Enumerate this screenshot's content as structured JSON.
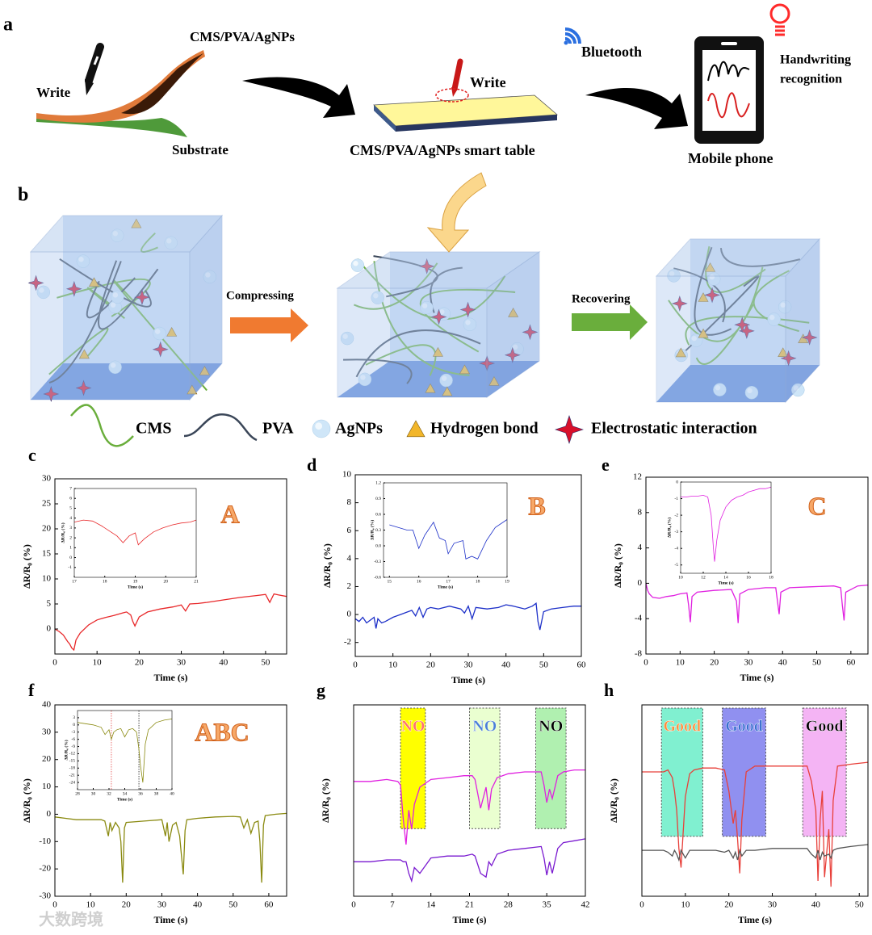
{
  "panel_labels": [
    "a",
    "b"
  ],
  "panel_a": {
    "film_label": "CMS/PVA/AgNPs",
    "write_left": "Write",
    "substrate": "Substrate",
    "write_table": "Write",
    "table_label": "CMS/PVA/AgNPs smart table",
    "bluetooth": "Bluetooth",
    "handwriting": [
      "Handwriting",
      "recognition"
    ],
    "phone": "Mobile phone"
  },
  "panel_b": {
    "compressing": "Compressing",
    "recovering": "Recovering",
    "legend": [
      "CMS",
      "PVA",
      "AgNPs",
      "Hydrogen bond",
      "Electrostatic interaction"
    ]
  },
  "watermark": "大数跨境",
  "chart_data": [
    {
      "panel": "c",
      "type": "line",
      "xlabel": "Time (s)",
      "ylabel": "ΔR/R₀ (%)",
      "annotation": "A",
      "xlim": [
        0,
        55
      ],
      "xticks": [
        0,
        10,
        20,
        30,
        40,
        50
      ],
      "ylim": [
        -5,
        30
      ],
      "yticks": [
        0,
        5,
        10,
        15,
        20,
        25,
        30
      ],
      "x": [
        0,
        1,
        2,
        3,
        3.5,
        4,
        4.5,
        5,
        6,
        8,
        10,
        12,
        14,
        16,
        17,
        18,
        18.5,
        19,
        20,
        22,
        25,
        28,
        30,
        31,
        32,
        34,
        36,
        40,
        44,
        48,
        50,
        51,
        52,
        53,
        55
      ],
      "series": [
        {
          "color": "#e8282a",
          "values": [
            0,
            -0.5,
            -1.2,
            -2.5,
            -3,
            -3.8,
            -4.2,
            -2.2,
            -0.8,
            0.8,
            1.8,
            2.3,
            2.7,
            3.2,
            3.4,
            2.8,
            1.5,
            0.6,
            2.4,
            3.4,
            4,
            4.4,
            4.8,
            3.6,
            5,
            5.1,
            5.3,
            5.8,
            6.3,
            6.7,
            6.9,
            5.3,
            7,
            6.8,
            6.5
          ]
        }
      ],
      "inset": {
        "type": "line",
        "xlabel": "Time (s)",
        "ylabel": "ΔR/R₀ (%)",
        "xlim": [
          17,
          21
        ],
        "xticks": [
          17,
          18,
          19,
          20,
          21
        ],
        "ylim": [
          -2,
          7
        ],
        "yticks": [
          -1,
          0,
          1,
          2,
          3,
          4,
          5,
          6,
          7
        ],
        "x": [
          17,
          17.3,
          17.6,
          17.9,
          18.2,
          18.4,
          18.6,
          18.8,
          19,
          19.1,
          19.3,
          19.6,
          19.9,
          20.2,
          20.5,
          20.8,
          21
        ],
        "series": [
          {
            "color": "#e8282a",
            "values": [
              3.6,
              3.8,
              3.7,
              3.2,
              2.6,
              2.2,
              1.5,
              2.2,
              2.5,
              1.3,
              1.9,
              2.6,
              3,
              3.3,
              3.5,
              3.6,
              3.8
            ]
          }
        ]
      }
    },
    {
      "panel": "d",
      "type": "line",
      "xlabel": "Time (s)",
      "ylabel": "ΔR/R₀ (%)",
      "annotation": "B",
      "xlim": [
        0,
        60
      ],
      "xticks": [
        0,
        10,
        20,
        30,
        40,
        50,
        60
      ],
      "ylim": [
        -3,
        10
      ],
      "yticks": [
        -2,
        0,
        2,
        4,
        6,
        8,
        10
      ],
      "x": [
        0,
        1,
        2,
        3,
        4,
        5,
        5.5,
        6,
        7,
        8,
        10,
        12,
        14,
        15,
        16,
        17,
        18,
        19,
        20,
        22,
        25,
        28,
        29,
        30,
        31,
        32,
        35,
        38,
        40,
        42,
        45,
        47,
        48,
        48.5,
        49,
        50,
        52,
        55,
        58,
        60
      ],
      "series": [
        {
          "color": "#1c2fc8",
          "values": [
            -0.3,
            -0.5,
            -0.2,
            -0.6,
            -0.4,
            -0.2,
            -1,
            -0.3,
            -0.6,
            -0.5,
            -0.2,
            0,
            0.2,
            0.3,
            -0.1,
            0.5,
            -0.2,
            0.4,
            0.5,
            0.4,
            0.6,
            0.4,
            0.1,
            0.6,
            -0.3,
            0.5,
            0.4,
            0.5,
            0.7,
            0.6,
            0.4,
            0.6,
            0.8,
            -0.5,
            -1.1,
            0.2,
            0.4,
            0.5,
            0.6,
            0.6
          ]
        }
      ],
      "inset": {
        "type": "line",
        "xlabel": "Time (s)",
        "ylabel": "ΔR/R₀ (%)",
        "xlim": [
          14.8,
          19
        ],
        "xticks": [
          15,
          16,
          17,
          18,
          19
        ],
        "ylim": [
          -0.6,
          1.2
        ],
        "yticks": [
          -0.6,
          -0.3,
          {
            "value": 0,
            "label": "0.0"
          },
          0.3,
          0.6,
          0.9,
          1.2
        ],
        "x": [
          15,
          15.3,
          15.6,
          15.8,
          16,
          16.2,
          16.5,
          16.7,
          16.9,
          17,
          17.2,
          17.5,
          17.6,
          17.8,
          18,
          18.3,
          18.6,
          19
        ],
        "series": [
          {
            "color": "#1c2fc8",
            "values": [
              0.4,
              0.35,
              0.3,
              0.3,
              -0.05,
              0.2,
              0.45,
              0.15,
              0.1,
              -0.15,
              0.05,
              0.1,
              -0.25,
              -0.2,
              -0.25,
              0.1,
              0.35,
              0.5
            ]
          }
        ]
      }
    },
    {
      "panel": "e",
      "type": "line",
      "xlabel": "Time (s)",
      "ylabel": "ΔR/R₀ (%)",
      "annotation": "C",
      "xlim": [
        0,
        65
      ],
      "xticks": [
        0,
        10,
        20,
        30,
        40,
        50,
        60
      ],
      "ylim": [
        -8,
        12
      ],
      "yticks": [
        -8,
        -4,
        0,
        4,
        8,
        12
      ],
      "x": [
        0,
        0.5,
        1,
        2,
        4,
        6,
        8,
        10,
        12,
        12.5,
        13,
        13.5,
        15,
        20,
        25,
        26.5,
        27,
        27.5,
        30,
        35,
        38,
        38.5,
        39,
        39.5,
        42,
        48,
        55,
        57,
        57.5,
        58,
        58.5,
        62,
        65
      ],
      "series": [
        {
          "color": "#e020e0",
          "values": [
            0,
            -0.8,
            -1.2,
            -1.6,
            -1.7,
            -1.5,
            -1.4,
            -1.2,
            -1.1,
            -2.5,
            -4.4,
            -1.5,
            -1,
            -0.8,
            -0.7,
            -2,
            -4.5,
            -1.2,
            -0.7,
            -0.5,
            -0.5,
            -2,
            -3.5,
            -1,
            -0.5,
            -0.4,
            -0.3,
            -0.5,
            -2.5,
            -4.2,
            -1,
            -0.3,
            -0.2
          ]
        }
      ],
      "inset": {
        "type": "line",
        "xlabel": "Time (s)",
        "ylabel": "ΔR/R₀ (%)",
        "xlim": [
          10,
          18
        ],
        "xticks": [
          10,
          12,
          14,
          16,
          18
        ],
        "ylim": [
          -5.5,
          0
        ],
        "yticks": [
          -5,
          -4,
          -3,
          -2,
          -1,
          0
        ],
        "x": [
          10,
          10.5,
          11,
          11.5,
          12,
          12.4,
          12.7,
          12.9,
          13,
          13.2,
          13.5,
          14,
          14.5,
          15,
          15.5,
          16,
          16.5,
          17,
          17.5,
          18
        ],
        "series": [
          {
            "color": "#e020e0",
            "values": [
              -0.9,
              -0.9,
              -0.85,
              -0.85,
              -0.8,
              -0.9,
              -2,
              -4,
              -4.8,
              -3.5,
              -2.3,
              -1.5,
              -1.1,
              -0.9,
              -0.8,
              -0.6,
              -0.5,
              -0.4,
              -0.4,
              -0.3
            ]
          }
        ]
      }
    },
    {
      "panel": "f",
      "type": "line",
      "xlabel": "Time (s)",
      "ylabel": "ΔR/R₀ (%)",
      "annotation": "ABC",
      "xlim": [
        0,
        65
      ],
      "xticks": [
        0,
        10,
        20,
        30,
        40,
        50,
        60
      ],
      "ylim": [
        -30,
        40
      ],
      "yticks": [
        -30,
        -20,
        -10,
        0,
        10,
        20,
        30,
        40
      ],
      "x": [
        0,
        3,
        6,
        10,
        13,
        14,
        15,
        15.5,
        16,
        17,
        18,
        18.5,
        19,
        19.5,
        20,
        25,
        30,
        31,
        31.5,
        32,
        33,
        34,
        35,
        35.5,
        36,
        36.5,
        37,
        40,
        45,
        50,
        52,
        53,
        54,
        55,
        56,
        57,
        57.5,
        58,
        58.5,
        59,
        62,
        65
      ],
      "series": [
        {
          "color": "#8a8a10",
          "values": [
            -1,
            -1.5,
            -2,
            -2,
            -2,
            -2.5,
            -8,
            -3,
            -6,
            -3,
            -5,
            -10,
            -25,
            -5,
            -3,
            -2.5,
            -2,
            -8,
            -3,
            -10,
            -4,
            -3,
            -8,
            -15,
            -22,
            -6,
            -2,
            -1.5,
            -1,
            -0.8,
            -1,
            -5,
            -2,
            -7,
            -3,
            -2.5,
            -10,
            -25,
            -4,
            -0.5,
            0,
            0.3
          ]
        }
      ],
      "inset": {
        "type": "line",
        "xlabel": "Time (s)",
        "ylabel": "ΔR/R₀ (%)",
        "xlim": [
          28,
          40
        ],
        "xticks": [
          28,
          30,
          32,
          34,
          36,
          38,
          40
        ],
        "ylim": [
          -27,
          6
        ],
        "yticks": [
          -24,
          -21,
          -18,
          -15,
          -12,
          -9,
          -6,
          -3,
          0,
          3
        ],
        "x": [
          28,
          29,
          30,
          31,
          31.5,
          32,
          32.3,
          32.6,
          33,
          33.5,
          34,
          34.5,
          35,
          35.5,
          35.8,
          36,
          36.3,
          36.6,
          37,
          38,
          39,
          40
        ],
        "series": [
          {
            "color": "#8a8a10",
            "values": [
              1,
              0.5,
              0,
              -1,
              -4,
              -2,
              -6,
              -3,
              -2,
              -1.5,
              -5,
              -2,
              -1.5,
              -3,
              -10,
              -17,
              -24,
              -8,
              -2,
              1,
              2,
              2.5
            ]
          }
        ],
        "vlines": [
          {
            "x": 32.3,
            "color": "#e03030"
          },
          {
            "x": 35.8,
            "color": "#000000"
          }
        ]
      }
    },
    {
      "panel": "g",
      "type": "line",
      "xlabel": "Time (s)",
      "ylabel": "ΔR/R₀ (%)",
      "xlim": [
        0,
        42
      ],
      "xticks": [
        0,
        7,
        14,
        21,
        28,
        35,
        42
      ],
      "ylim": [
        0,
        10
      ],
      "x": [
        0,
        3,
        6,
        8,
        8.5,
        9,
        9.5,
        10,
        10.5,
        11,
        12,
        14,
        17,
        20,
        21.5,
        22,
        23,
        24,
        24.5,
        25,
        26,
        28,
        31,
        34,
        34.5,
        35,
        35.5,
        36,
        37,
        38,
        40,
        42
      ],
      "series": [
        {
          "color": "#e020e0",
          "values": [
            6,
            6,
            6.1,
            6,
            5.8,
            4,
            2.7,
            4.5,
            3.5,
            4.8,
            5.7,
            6.1,
            6.2,
            6.3,
            6.3,
            6.1,
            4.6,
            5.7,
            4.5,
            5.6,
            6.2,
            6.4,
            6.5,
            6.5,
            5.8,
            4.9,
            5.6,
            5.1,
            6.3,
            6.5,
            6.6,
            6.6
          ]
        },
        {
          "color": "#7a1ad0",
          "values": [
            1.8,
            1.8,
            1.9,
            1.9,
            1.9,
            1.8,
            1.8,
            1.2,
            0.8,
            1.5,
            1.2,
            2,
            2.1,
            2.1,
            2.2,
            2.1,
            1.2,
            1,
            1.8,
            1.6,
            2.2,
            2.4,
            2.5,
            2.6,
            2,
            1.1,
            1.8,
            1.2,
            2.5,
            2.8,
            2.9,
            3
          ]
        }
      ],
      "highlights": [
        {
          "label": "NO",
          "x": [
            8.5,
            13
          ],
          "color": "#ffff00",
          "label_color": "#ff7070"
        },
        {
          "label": "NO",
          "x": [
            21,
            26.5
          ],
          "color": "#eaffd0",
          "label_color": "#4a7fd8"
        },
        {
          "label": "NO",
          "x": [
            33,
            38.5
          ],
          "color": "#b0f0b0",
          "label_color": "#000000"
        }
      ]
    },
    {
      "panel": "h",
      "type": "line",
      "xlabel": "Time (s)",
      "ylabel": "ΔR/R₀ (%)",
      "xlim": [
        0,
        52
      ],
      "xticks": [
        0,
        10,
        20,
        30,
        40,
        50
      ],
      "ylim": [
        0,
        10
      ],
      "x": [
        0,
        3,
        5,
        6,
        7,
        7.5,
        8,
        8.5,
        9,
        10,
        11,
        12,
        14,
        17,
        19,
        20,
        21,
        21.5,
        22,
        22.5,
        23,
        24,
        26,
        30,
        35,
        38,
        39,
        40,
        40.5,
        41,
        41.5,
        42,
        43,
        43.5,
        44,
        45,
        48,
        52
      ],
      "series": [
        {
          "color": "#e8403a",
          "values": [
            6.5,
            6.5,
            6.5,
            6.6,
            6.2,
            5.5,
            4.5,
            2.5,
            1.5,
            5.2,
            6.4,
            6.6,
            6.7,
            6.7,
            6.6,
            5.5,
            3.8,
            4.5,
            3,
            1.2,
            4,
            6.5,
            6.8,
            6.8,
            6.8,
            6.8,
            6,
            4.5,
            0.8,
            4,
            5.5,
            1,
            3.5,
            0.5,
            5,
            6.8,
            6.9,
            7
          ]
        },
        {
          "color": "#555555",
          "values": [
            2.4,
            2.4,
            2.4,
            2.3,
            2.1,
            2.4,
            2.2,
            1.9,
            2.4,
            2,
            2.4,
            2.4,
            2.4,
            2.4,
            2.3,
            2.4,
            2,
            2.3,
            1.9,
            2.4,
            2.1,
            2.4,
            2.4,
            2.5,
            2.5,
            2.5,
            2.2,
            2,
            2.4,
            1.9,
            2.3,
            2.1,
            2.2,
            2,
            2.4,
            2.5,
            2.6,
            2.7
          ]
        }
      ],
      "highlights": [
        {
          "label": "Good",
          "x": [
            4.5,
            14
          ],
          "color": "#80f0d0",
          "label_color": "#ff8c3c"
        },
        {
          "label": "Good",
          "x": [
            18.5,
            28.5
          ],
          "color": "#9090f0",
          "label_color": "#3a6fd0"
        },
        {
          "label": "Good",
          "x": [
            37,
            47
          ],
          "color": "#f4b4f4",
          "label_color": "#000000"
        }
      ]
    }
  ]
}
